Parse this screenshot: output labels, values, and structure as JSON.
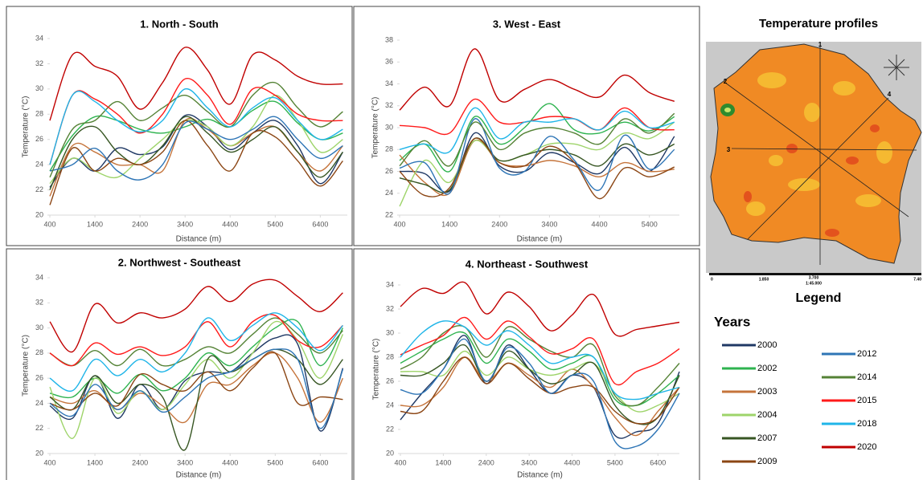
{
  "chart_data": [
    {
      "type": "line",
      "title": "1. North - South",
      "xlabel": "Distance (m)",
      "ylabel": "Temperature (°C)",
      "x": [
        400,
        900,
        1400,
        1900,
        2400,
        2900,
        3400,
        3900,
        4400,
        4900,
        5400,
        5900,
        6400,
        6900
      ],
      "xlim": [
        400,
        7000
      ],
      "xticks": [
        400,
        1400,
        2400,
        3400,
        4400,
        5400,
        6400
      ],
      "ylim": [
        20,
        34
      ],
      "yticks": [
        20,
        22,
        24,
        26,
        28,
        30,
        32,
        34
      ],
      "series": [
        {
          "values": [
            22.2,
            24.5,
            23.5,
            25.3,
            24.8,
            25.4,
            27.9,
            27,
            25.2,
            26.5,
            27.5,
            25.5,
            22.5,
            25
          ]
        },
        {
          "values": [
            23.5,
            26.3,
            27.8,
            27.5,
            26.8,
            26.5,
            27,
            27.6,
            27,
            28.3,
            29,
            27.3,
            26,
            26.5
          ]
        },
        {
          "values": [
            21.5,
            25.5,
            25,
            24,
            24,
            23.5,
            27.5,
            26.8,
            25.5,
            26.5,
            27,
            25,
            23.5,
            25.5
          ]
        },
        {
          "values": [
            22.5,
            24.5,
            23.5,
            23,
            24.5,
            26,
            27.5,
            27,
            25.5,
            27,
            29.5,
            27.5,
            25,
            26
          ]
        },
        {
          "values": [
            22,
            26,
            27,
            25,
            24,
            25.5,
            27.8,
            26.5,
            25,
            26,
            27,
            25,
            23,
            25
          ]
        },
        {
          "values": [
            20.8,
            25.3,
            23.5,
            24.5,
            24,
            25,
            27.5,
            25.5,
            23.5,
            26.5,
            26.2,
            24.3,
            22.3,
            24.3
          ]
        },
        {
          "values": [
            23.5,
            24,
            25.3,
            23.5,
            22.8,
            24,
            27.3,
            26.8,
            26,
            26.8,
            27.8,
            26,
            24.5,
            25.5
          ]
        },
        {
          "values": [
            23,
            26.8,
            27.5,
            29,
            27.5,
            28.5,
            29.5,
            28.2,
            27,
            29.5,
            30.5,
            28.5,
            27,
            28.2
          ]
        },
        {
          "values": [
            24,
            29.5,
            29.2,
            28,
            26.5,
            28,
            30.8,
            29.5,
            27.2,
            30,
            29.5,
            28,
            27.5,
            27.5
          ]
        },
        {
          "values": [
            24,
            29.5,
            29,
            27.5,
            26.6,
            27.5,
            30,
            28.5,
            27,
            28.5,
            29.3,
            27.5,
            26,
            26.8
          ]
        },
        {
          "values": [
            27.5,
            32.7,
            31.8,
            31,
            28.4,
            30.5,
            33.3,
            31.5,
            28.8,
            32.7,
            32.3,
            31,
            30.4,
            30.4
          ]
        }
      ]
    },
    {
      "type": "line",
      "title": "3. West - East",
      "xlabel": "Distance (m)",
      "ylabel": "Temperature (°C)",
      "x": [
        400,
        900,
        1400,
        1900,
        2400,
        2900,
        3400,
        3900,
        4400,
        4900,
        5400,
        5900
      ],
      "xlim": [
        400,
        6000
      ],
      "xticks": [
        400,
        1400,
        2400,
        3400,
        4400,
        5400
      ],
      "ylim": [
        22,
        38
      ],
      "yticks": [
        22,
        24,
        26,
        28,
        30,
        32,
        34,
        36,
        38
      ],
      "series": [
        {
          "values": [
            26,
            25.8,
            24.2,
            29.5,
            26.5,
            26,
            27.7,
            26.8,
            25.8,
            28.2,
            26,
            29.2
          ]
        },
        {
          "values": [
            27,
            28.5,
            26,
            31,
            28.5,
            30,
            32.2,
            29.8,
            29.5,
            30.5,
            29.7,
            31
          ]
        },
        {
          "values": [
            27.5,
            25,
            24,
            28.8,
            26.8,
            26.5,
            27,
            26.5,
            25.5,
            26.8,
            26,
            26.2
          ]
        },
        {
          "values": [
            22.8,
            27,
            25,
            28.8,
            27,
            27.5,
            28.5,
            28.5,
            28,
            29.5,
            29,
            30.5
          ]
        },
        {
          "values": [
            25.4,
            24.8,
            24.3,
            29,
            27,
            27.5,
            28,
            27.5,
            26.5,
            28.5,
            27.5,
            28.5
          ]
        },
        {
          "values": [
            26,
            23.8,
            24.5,
            29,
            26.8,
            26.5,
            28.3,
            26.8,
            23.5,
            26.3,
            25.5,
            26.4
          ]
        },
        {
          "values": [
            26.3,
            26.8,
            24,
            30.8,
            26.3,
            26,
            29.2,
            27,
            24.3,
            29.3,
            26.2,
            28
          ]
        },
        {
          "values": [
            26.5,
            28.8,
            26.5,
            30.5,
            28,
            29.5,
            30,
            29.5,
            28.5,
            30.8,
            29.5,
            31.3
          ]
        },
        {
          "values": [
            30.2,
            30,
            29.5,
            32.6,
            30.5,
            30.5,
            31,
            30.8,
            29.8,
            31.8,
            30,
            29.8
          ]
        },
        {
          "values": [
            28,
            28.5,
            27.8,
            31.8,
            29,
            30.5,
            30.5,
            30.8,
            29.8,
            31.5,
            30,
            30.5
          ]
        },
        {
          "values": [
            31.6,
            33.7,
            32,
            37.2,
            32.5,
            33.5,
            34.4,
            33.5,
            32.8,
            34.8,
            33.2,
            32.4
          ]
        }
      ]
    },
    {
      "type": "line",
      "title": "2. Northwest - Southeast",
      "xlabel": "Distance (m)",
      "ylabel": "Temperature (°C)",
      "x": [
        400,
        900,
        1400,
        1900,
        2400,
        2900,
        3400,
        3900,
        4400,
        4900,
        5400,
        5900,
        6400,
        6900
      ],
      "xlim": [
        400,
        7000
      ],
      "xticks": [
        400,
        1400,
        2400,
        3400,
        4400,
        5400,
        6400
      ],
      "ylim": [
        20,
        34
      ],
      "yticks": [
        20,
        22,
        24,
        26,
        28,
        30,
        32,
        34
      ],
      "series": [
        {
          "values": [
            23.8,
            22.8,
            26.2,
            22.8,
            25.5,
            23.5,
            25.8,
            26.5,
            26.5,
            28,
            29.2,
            28.7,
            21.8,
            26.8
          ]
        },
        {
          "values": [
            24.8,
            24.5,
            26,
            24.8,
            26.3,
            25,
            26,
            28,
            27,
            28.5,
            30,
            30.5,
            27,
            30
          ]
        },
        {
          "values": [
            24.5,
            24,
            25,
            23.5,
            24.8,
            23.8,
            22.5,
            25.5,
            25.5,
            27,
            28,
            26,
            22.5,
            26
          ]
        },
        {
          "values": [
            25.3,
            21.2,
            26,
            23.2,
            25,
            23.5,
            25.5,
            27.5,
            26,
            28,
            30.5,
            29,
            26,
            29.5
          ]
        },
        {
          "values": [
            24.5,
            23.5,
            26.2,
            24,
            25.5,
            24.5,
            20.3,
            27.5,
            26.5,
            27.5,
            28.3,
            27.5,
            25.5,
            27.5
          ]
        },
        {
          "values": [
            24,
            23.5,
            24.8,
            23.8,
            26.3,
            25.5,
            25,
            26.5,
            25,
            26.8,
            28,
            24,
            24.5,
            24.3
          ]
        },
        {
          "values": [
            24,
            23,
            25.5,
            23.5,
            25,
            23.3,
            24.5,
            26,
            26.5,
            27.5,
            28.3,
            27.5,
            22,
            26.7
          ]
        },
        {
          "values": [
            28,
            27,
            28.2,
            27,
            28.3,
            27,
            27.5,
            28.5,
            28,
            29.5,
            30.8,
            29.5,
            28,
            29.8
          ]
        },
        {
          "values": [
            28,
            27,
            28.8,
            27.9,
            28.5,
            27.8,
            28.5,
            30.5,
            28.5,
            30.5,
            31,
            29,
            28.5,
            30.2
          ]
        },
        {
          "values": [
            26,
            25,
            27.5,
            26.2,
            27.5,
            26.5,
            28,
            30.8,
            29,
            30.2,
            31.2,
            30,
            28.2,
            30.2
          ]
        },
        {
          "values": [
            30.5,
            28.1,
            31.9,
            30.4,
            31.2,
            30.8,
            31.5,
            33.3,
            32.1,
            33.5,
            33.8,
            32.5,
            31.3,
            32.8
          ]
        }
      ]
    },
    {
      "type": "line",
      "title": "4. Northeast - Southwest",
      "xlabel": "Distance (m)",
      "ylabel": "Temperature (°C)",
      "x": [
        400,
        900,
        1400,
        1900,
        2400,
        2900,
        3400,
        3900,
        4400,
        4900,
        5400,
        5900,
        6400,
        6900
      ],
      "xlim": [
        400,
        6900
      ],
      "xticks": [
        400,
        1400,
        2400,
        3400,
        4400,
        5400,
        6400
      ],
      "ylim": [
        20,
        34
      ],
      "yticks": [
        20,
        22,
        24,
        26,
        28,
        30,
        32,
        34
      ],
      "series": [
        {
          "values": [
            22.8,
            25,
            27,
            29.8,
            25.8,
            29,
            27,
            25,
            26.5,
            25.5,
            21.5,
            21.8,
            22.5,
            26.8
          ]
        },
        {
          "values": [
            27.5,
            28.5,
            29.5,
            30,
            27.5,
            29.5,
            28.5,
            27,
            27.5,
            28,
            24.5,
            24,
            25,
            26.5
          ]
        },
        {
          "values": [
            24,
            24,
            25.5,
            28,
            26,
            27.5,
            26.5,
            25.5,
            27,
            25.5,
            23,
            21.5,
            23.5,
            25.5
          ]
        },
        {
          "values": [
            26.8,
            26.8,
            26.5,
            28.5,
            26.5,
            28,
            27,
            26.5,
            27,
            27.5,
            25,
            23.5,
            24,
            25
          ]
        },
        {
          "values": [
            26.5,
            26.5,
            27.5,
            29,
            26,
            28.5,
            27,
            25.8,
            26.5,
            27.5,
            24,
            22.5,
            23,
            26.5
          ]
        },
        {
          "values": [
            23.5,
            23.5,
            26,
            28,
            25.8,
            27.5,
            26.2,
            25,
            25.5,
            25.5,
            23.5,
            22.5,
            23,
            25.5
          ]
        },
        {
          "values": [
            25.3,
            25,
            27,
            29.5,
            26,
            28.8,
            27.5,
            25,
            26.5,
            26,
            21,
            20.6,
            22,
            25
          ]
        },
        {
          "values": [
            27,
            28,
            30,
            30.5,
            28,
            30.5,
            29.5,
            28.5,
            28,
            29,
            24.8,
            24,
            25.5,
            27.5
          ]
        },
        {
          "values": [
            28.2,
            29,
            29.8,
            31.3,
            29.5,
            31,
            29.7,
            28.3,
            28.7,
            29.5,
            25.8,
            26.8,
            27.5,
            28.7
          ]
        },
        {
          "values": [
            28,
            30,
            31,
            30.5,
            29,
            30.2,
            29,
            27.5,
            28,
            28,
            25,
            24.5,
            25,
            25.5
          ]
        },
        {
          "values": [
            32.2,
            33.7,
            33.3,
            34.2,
            31.6,
            33.4,
            32.2,
            30.2,
            31.5,
            33.2,
            29.9,
            30.3,
            30.6,
            30.9
          ]
        }
      ]
    }
  ],
  "map": {
    "title": "Temperature profiles",
    "profile_labels": [
      "1",
      "2",
      "3",
      "4"
    ],
    "scale_labels": [
      "0",
      "1.850",
      "3.700",
      "1:45.000",
      "7.40"
    ]
  },
  "legend": {
    "title": "Legend",
    "heading": "Years",
    "entries": [
      {
        "name": "2000",
        "color": "#1f3864"
      },
      {
        "name": "2002",
        "color": "#2eb34f"
      },
      {
        "name": "2003",
        "color": "#c5743b"
      },
      {
        "name": "2004",
        "color": "#9ed46a"
      },
      {
        "name": "2007",
        "color": "#375623"
      },
      {
        "name": "2009",
        "color": "#8b4513"
      },
      {
        "name": "2012",
        "color": "#2e75b6"
      },
      {
        "name": "2014",
        "color": "#548235"
      },
      {
        "name": "2015",
        "color": "#ff1a1a"
      },
      {
        "name": "2018",
        "color": "#1fb5e8"
      },
      {
        "name": "2020",
        "color": "#c00000"
      }
    ]
  }
}
